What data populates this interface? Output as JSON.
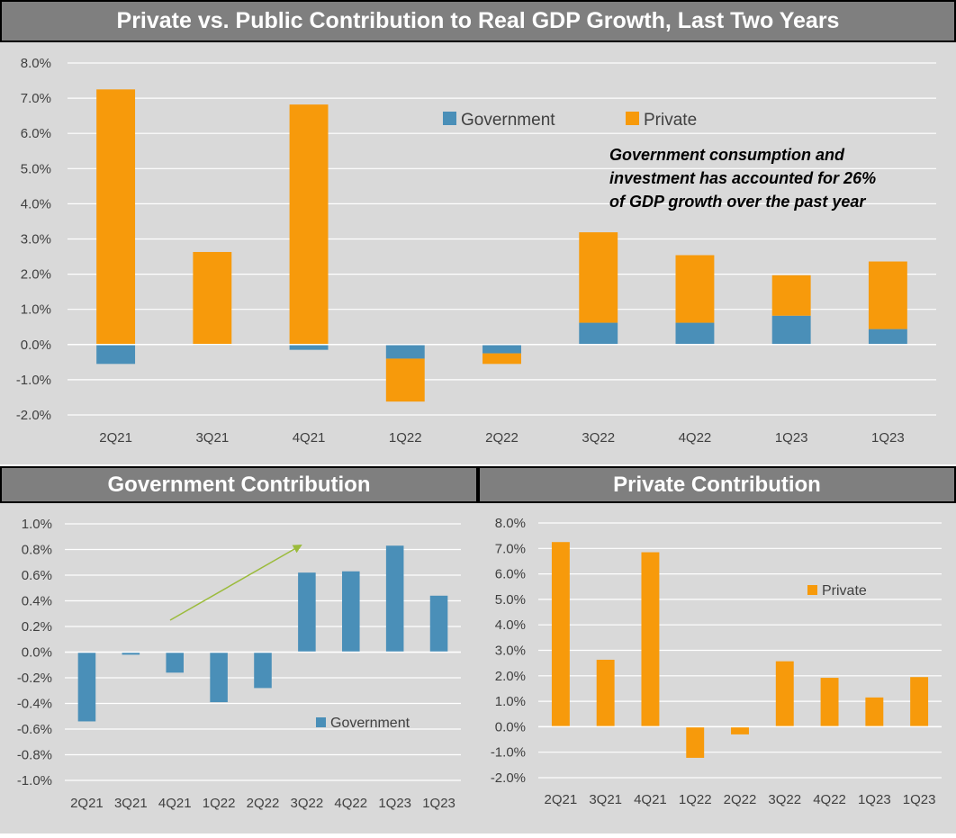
{
  "colors": {
    "government": "#4a8fb8",
    "private": "#f79a0b",
    "header_bg": "#7f7f7f",
    "panel_bg": "#d9d9d9",
    "gridline": "#ffffff",
    "arrow": "#9bbb3b"
  },
  "headers": {
    "main": "Private vs. Public Contribution to Real GDP Growth, Last Two Years",
    "government": "Government Contribution",
    "private": "Private Contribution"
  },
  "annotation": {
    "lines": [
      "Government consumption and",
      "investment has accounted for 26%",
      "of GDP growth over the past year"
    ]
  },
  "chart_data": [
    {
      "type": "bar",
      "stacked": true,
      "title": "Private vs. Public Contribution to Real GDP Growth, Last Two Years",
      "categories": [
        "2Q21",
        "3Q21",
        "4Q21",
        "1Q22",
        "2Q22",
        "3Q22",
        "4Q22",
        "1Q23",
        "1Q23"
      ],
      "series": [
        {
          "name": "Government",
          "values": [
            -0.55,
            0.0,
            -0.15,
            -0.4,
            -0.25,
            0.62,
            0.62,
            0.82,
            0.44
          ]
        },
        {
          "name": "Private",
          "values": [
            7.25,
            2.63,
            6.82,
            -1.22,
            -0.3,
            2.57,
            1.92,
            1.15,
            1.92
          ]
        }
      ],
      "yticks": [
        "8.0%",
        "7.0%",
        "6.0%",
        "5.0%",
        "4.0%",
        "3.0%",
        "2.0%",
        "1.0%",
        "0.0%",
        "-1.0%",
        "-2.0%"
      ],
      "ylim": [
        -2,
        8
      ],
      "grid": true,
      "legend": "top-center"
    },
    {
      "type": "bar",
      "title": "Government Contribution",
      "categories": [
        "2Q21",
        "3Q21",
        "4Q21",
        "1Q22",
        "2Q22",
        "3Q22",
        "4Q22",
        "1Q23",
        "1Q23"
      ],
      "series": [
        {
          "name": "Government",
          "values": [
            -0.54,
            -0.02,
            -0.16,
            -0.39,
            -0.28,
            0.62,
            0.63,
            0.83,
            0.44
          ]
        }
      ],
      "yticks": [
        "1.0%",
        "0.8%",
        "0.6%",
        "0.4%",
        "0.2%",
        "0.0%",
        "-0.2%",
        "-0.4%",
        "-0.6%",
        "-0.8%",
        "-1.0%"
      ],
      "ylim": [
        -1,
        1
      ],
      "grid": true,
      "legend": "bottom-right"
    },
    {
      "type": "bar",
      "title": "Private Contribution",
      "categories": [
        "2Q21",
        "3Q21",
        "4Q21",
        "1Q22",
        "2Q22",
        "3Q22",
        "4Q22",
        "1Q23",
        "1Q23"
      ],
      "series": [
        {
          "name": "Private",
          "values": [
            7.25,
            2.63,
            6.85,
            -1.22,
            -0.3,
            2.57,
            1.92,
            1.15,
            1.95
          ]
        }
      ],
      "yticks": [
        "8.0%",
        "7.0%",
        "6.0%",
        "5.0%",
        "4.0%",
        "3.0%",
        "2.0%",
        "1.0%",
        "0.0%",
        "-1.0%",
        "-2.0%"
      ],
      "ylim": [
        -2,
        8
      ],
      "grid": true,
      "legend": "top-right"
    }
  ]
}
